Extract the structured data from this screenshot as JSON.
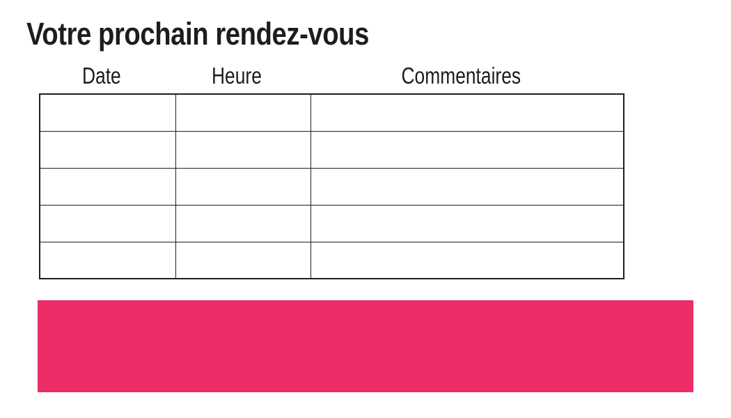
{
  "title": "Votre prochain rendez-vous",
  "table": {
    "headers": [
      "Date",
      "Heure",
      "Commentaires"
    ],
    "rows": [
      [
        "",
        "",
        ""
      ],
      [
        "",
        "",
        ""
      ],
      [
        "",
        "",
        ""
      ],
      [
        "",
        "",
        ""
      ],
      [
        "",
        "",
        ""
      ]
    ]
  },
  "colors": {
    "accent_pink": "#ED2D67",
    "text": "#1D1D1D",
    "table_border": "#1E1E1E"
  }
}
